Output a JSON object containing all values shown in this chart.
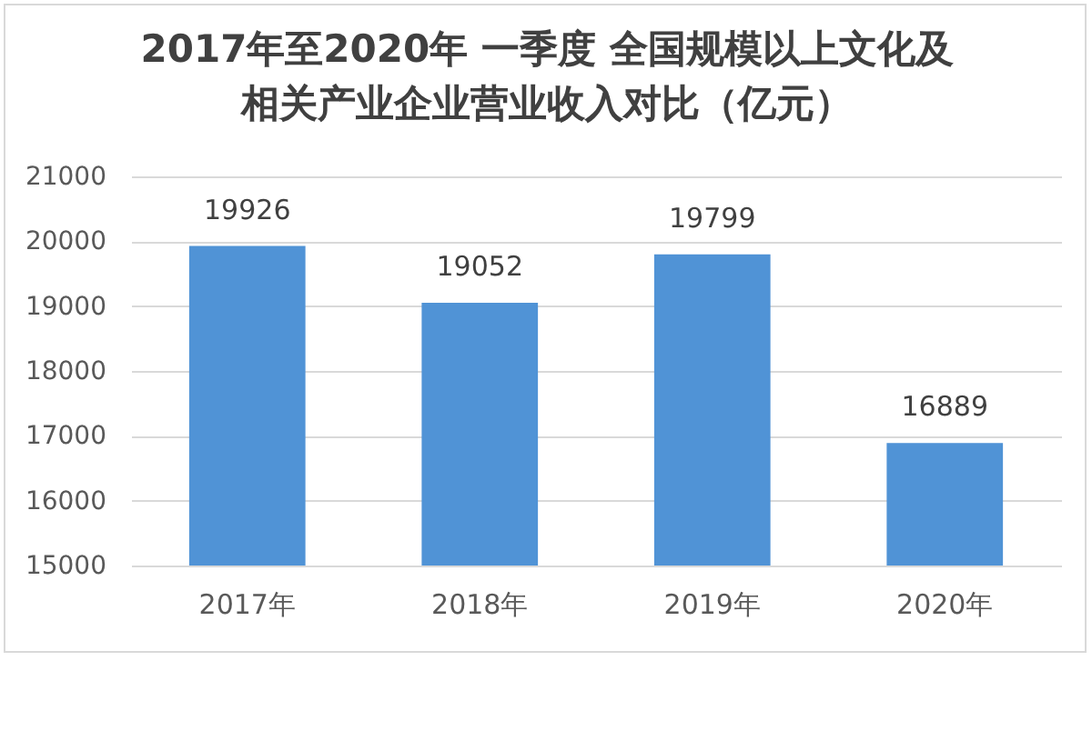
{
  "chart_data": {
    "type": "bar",
    "title": "2017年至2020年 一季度 全国规模以上文化及相关产业企业营业收入对比（亿元）",
    "categories": [
      "2017年",
      "2018年",
      "2019年",
      "2020年"
    ],
    "values": [
      19926,
      19052,
      19799,
      16889
    ],
    "color": "#5093d6",
    "ylim": [
      15000,
      21000
    ],
    "yticks": [
      15000,
      16000,
      17000,
      18000,
      19000,
      20000,
      21000
    ],
    "grid": "y",
    "data_labels": true
  }
}
